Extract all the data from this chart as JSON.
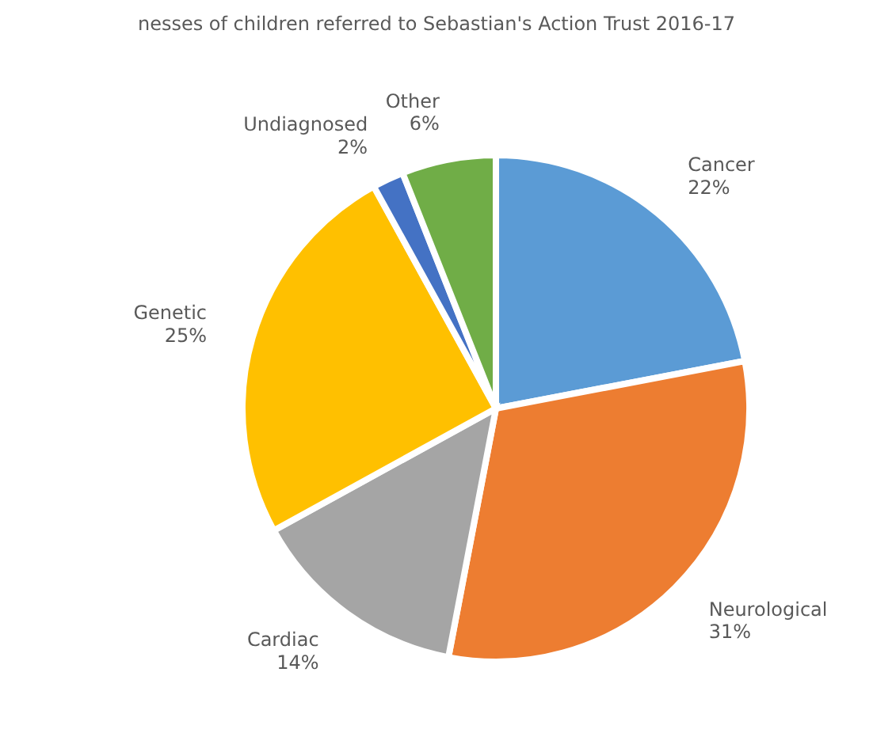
{
  "chart_data": {
    "type": "pie",
    "title": "nesses of children referred to Sebastian's Action Trust 2016-17",
    "categories": [
      "Cancer",
      "Neurological",
      "Cardiac",
      "Genetic",
      "Undiagnosed",
      "Other"
    ],
    "values": [
      22,
      31,
      14,
      25,
      2,
      6
    ],
    "colors": [
      "#5b9bd5",
      "#ed7d31",
      "#a5a5a5",
      "#ffc000",
      "#4472c4",
      "#70ad47"
    ],
    "value_labels": [
      "22%",
      "31%",
      "14%",
      "25%",
      "2%",
      "6%"
    ],
    "legend": false
  }
}
